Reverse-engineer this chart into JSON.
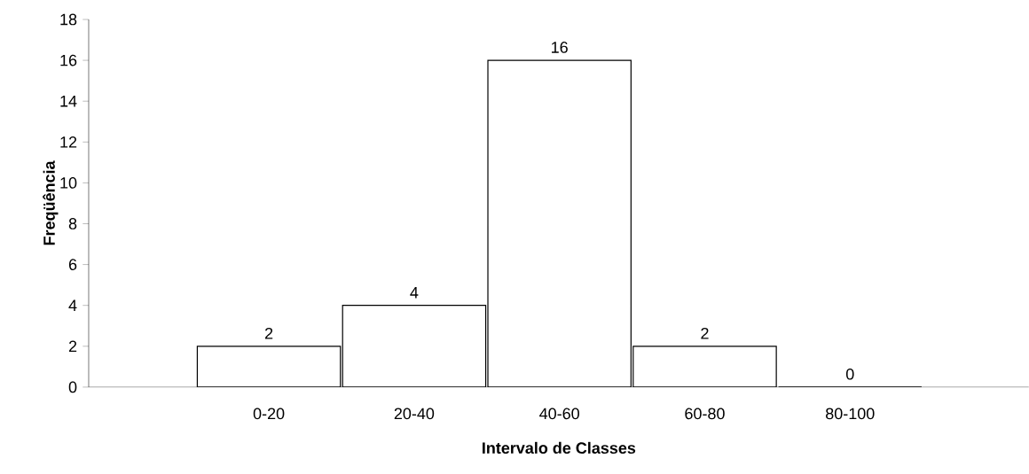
{
  "chart_data": {
    "type": "bar",
    "xlabel": "Intervalo de Classes",
    "ylabel": "Freqüência",
    "categories": [
      "0-20",
      "20-40",
      "40-60",
      "60-80",
      "80-100"
    ],
    "values": [
      2,
      4,
      16,
      2,
      0
    ],
    "color": "#ffffff",
    "ylim": [
      0,
      18
    ],
    "yticks": [
      0,
      2,
      4,
      6,
      8,
      10,
      12,
      14,
      16,
      18
    ],
    "data_labels": true
  }
}
